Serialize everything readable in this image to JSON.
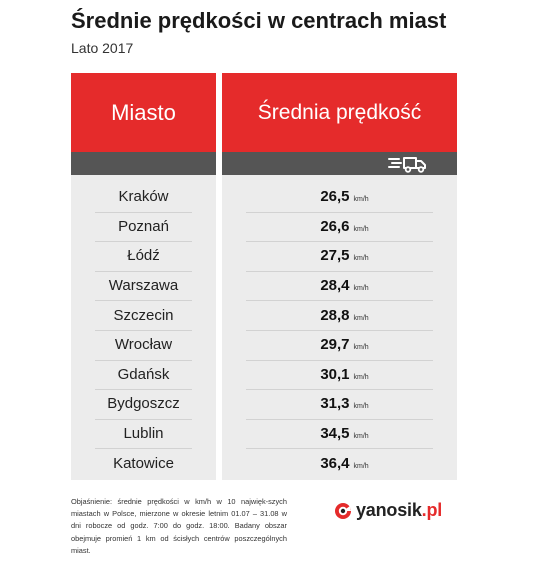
{
  "title": "Średnie prędkości w centrach miast",
  "subtitle": "Lato 2017",
  "table": {
    "col1_header": "Miasto",
    "col2_header": "Średnia prędkość",
    "unit": "km/h",
    "header_icon": "truck-speed-icon"
  },
  "chart_data": {
    "type": "table",
    "title": "Średnie prędkości w centrach miast",
    "subtitle": "Lato 2017",
    "columns": [
      "Miasto",
      "Średnia prędkość"
    ],
    "categories": [
      "Kraków",
      "Poznań",
      "Łódź",
      "Warszawa",
      "Szczecin",
      "Wrocław",
      "Gdańsk",
      "Bydgoszcz",
      "Lublin",
      "Katowice"
    ],
    "values": [
      "26,5",
      "26,6",
      "27,5",
      "28,4",
      "28,8",
      "29,7",
      "30,1",
      "31,3",
      "34,5",
      "36,4"
    ],
    "unit": "km/h"
  },
  "footnote": "Objaśnienie: średnie prędkości w km/h w 10 najwięk-szych miastach w Polsce, mierzone w okresie letnim 01.07 – 31.08 w dni robocze od godz. 7:00 do godz. 18:00. Badany obszar obejmuje promień 1 km od ścisłych centrów poszczególnych miast.",
  "logo": {
    "name": "yanosik",
    "tld": ".pl"
  },
  "colors": {
    "accent": "#e52b2b",
    "band": "#555555",
    "panel": "#ececec"
  }
}
